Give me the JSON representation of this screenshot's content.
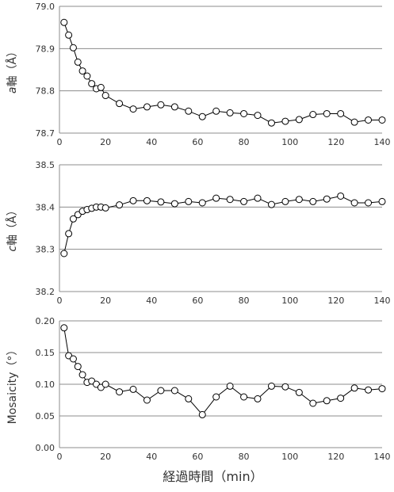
{
  "chart_data": [
    {
      "type": "line",
      "ylabel_italic": "a",
      "ylabel_rest": "軸（Å）",
      "ylim": [
        78.7,
        79.0
      ],
      "yticks": [
        78.7,
        78.8,
        78.9,
        79.0
      ],
      "ytick_labels": [
        "78.7",
        "78.8",
        "78.9",
        "79.0"
      ],
      "xlim": [
        0,
        140
      ],
      "xticks": [
        0,
        20,
        40,
        60,
        80,
        100,
        120,
        140
      ],
      "xtick_labels": [
        "0",
        "20",
        "40",
        "60",
        "80",
        "100",
        "120",
        "140"
      ],
      "grid": "horizontal",
      "marker": "open-circle",
      "x": [
        2,
        4,
        6,
        8,
        10,
        12,
        14,
        16,
        18,
        20,
        26,
        32,
        38,
        44,
        50,
        56,
        62,
        68,
        74,
        80,
        86,
        92,
        98,
        104,
        110,
        116,
        122,
        128,
        134,
        140
      ],
      "y": [
        78.962,
        78.932,
        78.902,
        78.868,
        78.847,
        78.835,
        78.817,
        78.805,
        78.808,
        78.789,
        78.77,
        78.757,
        78.762,
        78.767,
        78.762,
        78.752,
        78.739,
        78.752,
        78.748,
        78.746,
        78.742,
        78.724,
        78.728,
        78.732,
        78.744,
        78.746,
        78.746,
        78.726,
        78.731,
        78.731
      ]
    },
    {
      "type": "line",
      "ylabel_italic": "c",
      "ylabel_rest": "軸（Å）",
      "ylim": [
        38.2,
        38.5
      ],
      "yticks": [
        38.2,
        38.3,
        38.4,
        38.5
      ],
      "ytick_labels": [
        "38.2",
        "38.3",
        "38.4",
        "38.5"
      ],
      "xlim": [
        0,
        140
      ],
      "xticks": [
        0,
        20,
        40,
        60,
        80,
        100,
        120,
        140
      ],
      "xtick_labels": [
        "0",
        "20",
        "40",
        "60",
        "80",
        "100",
        "120",
        "140"
      ],
      "grid": "horizontal",
      "marker": "open-circle",
      "x": [
        2,
        4,
        6,
        8,
        10,
        12,
        14,
        16,
        18,
        20,
        26,
        32,
        38,
        44,
        50,
        56,
        62,
        68,
        74,
        80,
        86,
        92,
        98,
        104,
        110,
        116,
        122,
        128,
        134,
        140
      ],
      "y": [
        38.29,
        38.337,
        38.372,
        38.382,
        38.39,
        38.394,
        38.397,
        38.4,
        38.4,
        38.398,
        38.405,
        38.415,
        38.415,
        38.412,
        38.408,
        38.413,
        38.41,
        38.421,
        38.418,
        38.413,
        38.421,
        38.406,
        38.413,
        38.418,
        38.413,
        38.419,
        38.426,
        38.41,
        38.41,
        38.413
      ]
    },
    {
      "type": "line",
      "ylabel": "Mosaicity（°）",
      "ylim": [
        0.0,
        0.2
      ],
      "yticks": [
        0.0,
        0.05,
        0.1,
        0.15,
        0.2
      ],
      "ytick_labels": [
        "0.00",
        "0.05",
        "0.10",
        "0.15",
        "0.20"
      ],
      "xlim": [
        0,
        140
      ],
      "xticks": [
        0,
        20,
        40,
        60,
        80,
        100,
        120,
        140
      ],
      "xtick_labels": [
        "0",
        "20",
        "40",
        "60",
        "80",
        "100",
        "120",
        "140"
      ],
      "xlabel": "経過時間（min）",
      "grid": "horizontal",
      "marker": "open-circle",
      "x": [
        2,
        4,
        6,
        8,
        10,
        12,
        14,
        16,
        18,
        20,
        26,
        32,
        38,
        44,
        50,
        56,
        62,
        68,
        74,
        80,
        86,
        92,
        98,
        104,
        110,
        116,
        122,
        128,
        134,
        140
      ],
      "y": [
        0.189,
        0.145,
        0.14,
        0.128,
        0.115,
        0.103,
        0.105,
        0.1,
        0.095,
        0.1,
        0.088,
        0.092,
        0.075,
        0.09,
        0.09,
        0.077,
        0.052,
        0.08,
        0.097,
        0.08,
        0.077,
        0.097,
        0.096,
        0.087,
        0.07,
        0.074,
        0.078,
        0.094,
        0.091,
        0.093
      ]
    }
  ]
}
